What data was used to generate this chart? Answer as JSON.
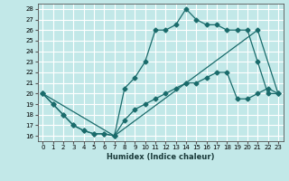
{
  "xlabel": "Humidex (Indice chaleur)",
  "bg_color": "#c2e8e8",
  "grid_color": "#ffffff",
  "line_color": "#1a6b6b",
  "xlim": [
    -0.5,
    23.5
  ],
  "ylim": [
    15.5,
    28.5
  ],
  "xticks": [
    0,
    1,
    2,
    3,
    4,
    5,
    6,
    7,
    8,
    9,
    10,
    11,
    12,
    13,
    14,
    15,
    16,
    17,
    18,
    19,
    20,
    21,
    22,
    23
  ],
  "yticks": [
    16,
    17,
    18,
    19,
    20,
    21,
    22,
    23,
    24,
    25,
    26,
    27,
    28
  ],
  "line1_x": [
    0,
    1,
    2,
    3,
    4,
    5,
    6,
    7,
    8,
    9,
    10,
    11,
    12,
    13,
    14,
    15,
    16,
    17,
    18,
    19,
    20,
    21,
    22,
    23
  ],
  "line1_y": [
    20,
    19,
    18,
    17,
    16.5,
    16.2,
    16.2,
    16,
    20.5,
    21.5,
    23,
    26,
    26,
    26.5,
    28,
    27,
    26.5,
    26.5,
    26,
    26,
    26,
    23,
    20,
    20
  ],
  "line2_x": [
    0,
    1,
    2,
    3,
    4,
    5,
    6,
    7,
    8,
    9,
    10,
    11,
    12,
    13,
    14,
    15,
    16,
    17,
    18,
    19,
    20,
    21,
    22,
    23
  ],
  "line2_y": [
    20,
    19,
    18,
    17,
    16.5,
    16.2,
    16.2,
    16,
    17.5,
    18.5,
    19,
    19.5,
    20,
    20.5,
    21,
    21,
    21.5,
    22,
    22,
    19.5,
    19.5,
    20,
    20.5,
    20
  ],
  "line3_x": [
    0,
    7,
    14,
    21,
    23
  ],
  "line3_y": [
    20,
    16,
    21,
    26,
    20
  ],
  "xlabel_fontsize": 6.0,
  "tick_fontsize": 5.0
}
